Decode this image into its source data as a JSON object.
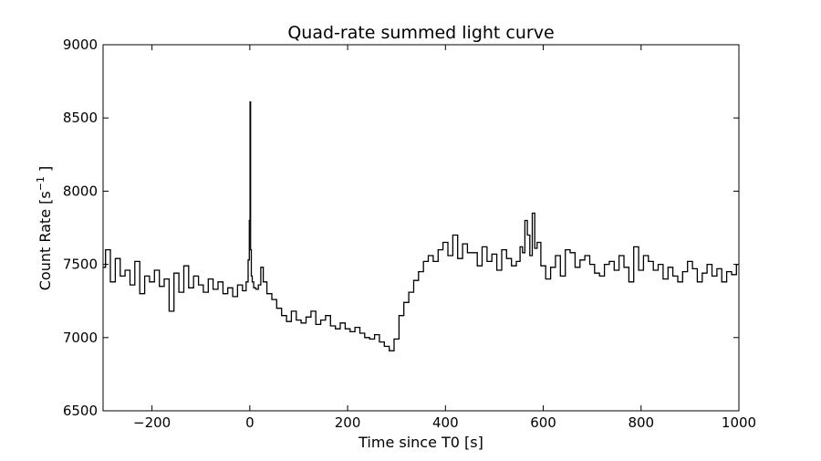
{
  "chart_data": {
    "type": "line",
    "title": "Quad-rate summed light curve",
    "xlabel": "Time since T0 [s]",
    "ylabel_main": "Count Rate [s",
    "ylabel_sup": "−1",
    "ylabel_end": " ]",
    "xlim": [
      -300,
      1000
    ],
    "ylim": [
      6500,
      9000
    ],
    "x_ticks": [
      -200,
      0,
      200,
      400,
      600,
      800,
      1000
    ],
    "x_tick_labels": [
      "−200",
      "0",
      "200",
      "400",
      "600",
      "800",
      "1000"
    ],
    "y_ticks": [
      6500,
      7000,
      7500,
      8000,
      8500,
      9000
    ],
    "y_tick_labels": [
      "6500",
      "7000",
      "7500",
      "8000",
      "8500",
      "9000"
    ],
    "grid": false,
    "line_color": "#000000",
    "drawstyle": "steps-mid",
    "series": [
      {
        "x": [
          -300,
          -290,
          -280,
          -270,
          -260,
          -250,
          -240,
          -230,
          -220,
          -210,
          -200,
          -190,
          -180,
          -170,
          -160,
          -150,
          -140,
          -130,
          -120,
          -110,
          -100,
          -90,
          -80,
          -70,
          -60,
          -50,
          -40,
          -30,
          -20,
          -10,
          -5,
          -2,
          0,
          1,
          2,
          4,
          6,
          10,
          15,
          20,
          25,
          30,
          40,
          50,
          60,
          70,
          80,
          90,
          100,
          110,
          120,
          130,
          140,
          150,
          160,
          170,
          180,
          190,
          200,
          210,
          220,
          230,
          240,
          250,
          260,
          270,
          280,
          290,
          300,
          310,
          320,
          330,
          340,
          350,
          360,
          370,
          380,
          390,
          400,
          410,
          420,
          430,
          440,
          450,
          460,
          470,
          480,
          490,
          500,
          510,
          520,
          530,
          540,
          550,
          555,
          560,
          565,
          570,
          575,
          580,
          585,
          590,
          600,
          610,
          620,
          630,
          640,
          650,
          660,
          670,
          680,
          690,
          700,
          710,
          720,
          730,
          740,
          750,
          760,
          770,
          780,
          790,
          800,
          810,
          820,
          830,
          840,
          850,
          860,
          870,
          880,
          890,
          900,
          910,
          920,
          930,
          940,
          950,
          960,
          970,
          980,
          990,
          1000
        ],
        "y": [
          7480,
          7600,
          7380,
          7540,
          7420,
          7460,
          7360,
          7520,
          7300,
          7420,
          7380,
          7460,
          7350,
          7400,
          7180,
          7440,
          7310,
          7490,
          7340,
          7420,
          7360,
          7310,
          7400,
          7330,
          7380,
          7300,
          7340,
          7280,
          7360,
          7320,
          7380,
          7530,
          7800,
          8610,
          7600,
          7420,
          7380,
          7340,
          7330,
          7360,
          7480,
          7380,
          7300,
          7260,
          7200,
          7150,
          7110,
          7180,
          7120,
          7100,
          7140,
          7180,
          7090,
          7120,
          7150,
          7080,
          7060,
          7100,
          7060,
          7040,
          7070,
          7030,
          7000,
          6990,
          7020,
          6970,
          6940,
          6910,
          6990,
          7150,
          7240,
          7310,
          7390,
          7450,
          7520,
          7560,
          7520,
          7600,
          7650,
          7560,
          7700,
          7540,
          7640,
          7580,
          7580,
          7490,
          7620,
          7520,
          7570,
          7460,
          7600,
          7540,
          7490,
          7520,
          7620,
          7580,
          7800,
          7700,
          7560,
          7850,
          7610,
          7650,
          7490,
          7400,
          7480,
          7560,
          7420,
          7600,
          7580,
          7480,
          7530,
          7560,
          7500,
          7440,
          7420,
          7500,
          7520,
          7460,
          7560,
          7480,
          7380,
          7620,
          7460,
          7560,
          7520,
          7460,
          7500,
          7400,
          7480,
          7420,
          7380,
          7450,
          7520,
          7470,
          7380,
          7440,
          7500,
          7420,
          7470,
          7380,
          7450,
          7430,
          7500
        ]
      }
    ]
  }
}
